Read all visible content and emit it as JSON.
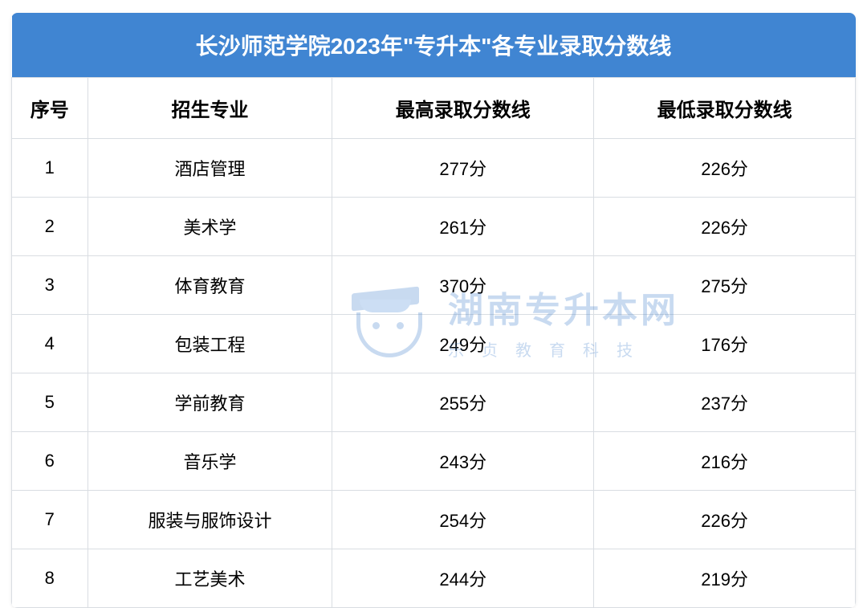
{
  "table": {
    "type": "table",
    "title": "长沙师范学院2023年\"专升本\"各专业录取分数线",
    "title_fontsize": 28,
    "title_fontweight": 700,
    "header_bg": "#4085d2",
    "header_color": "#ffffff",
    "border_color": "#d9dde2",
    "body_bg": "#ffffff",
    "body_color": "#000000",
    "body_fontsize": 22,
    "head_fontsize": 24,
    "columns": [
      {
        "label": "序号",
        "width_pct": 9,
        "align": "center"
      },
      {
        "label": "招生专业",
        "width_pct": 29,
        "align": "center"
      },
      {
        "label": "最高录取分数线",
        "width_pct": 31,
        "align": "center"
      },
      {
        "label": "最低录取分数线",
        "width_pct": 31,
        "align": "center"
      }
    ],
    "rows": [
      [
        "1",
        "酒店管理",
        "277分",
        "226分"
      ],
      [
        "2",
        "美术学",
        "261分",
        "226分"
      ],
      [
        "3",
        "体育教育",
        "370分",
        "275分"
      ],
      [
        "4",
        "包装工程",
        "249分",
        "176分"
      ],
      [
        "5",
        "学前教育",
        "255分",
        "237分"
      ],
      [
        "6",
        "音乐学",
        "243分",
        "216分"
      ],
      [
        "7",
        "服装与服饰设计",
        "254分",
        "226分"
      ],
      [
        "8",
        "工艺美术",
        "244分",
        "219分"
      ]
    ]
  },
  "watermark": {
    "main_text": "湖南专升本网",
    "sub_text": "乐贞教育科技",
    "color": "#3d7ecc",
    "opacity": 0.28,
    "main_fontsize": 44,
    "sub_fontsize": 20
  }
}
